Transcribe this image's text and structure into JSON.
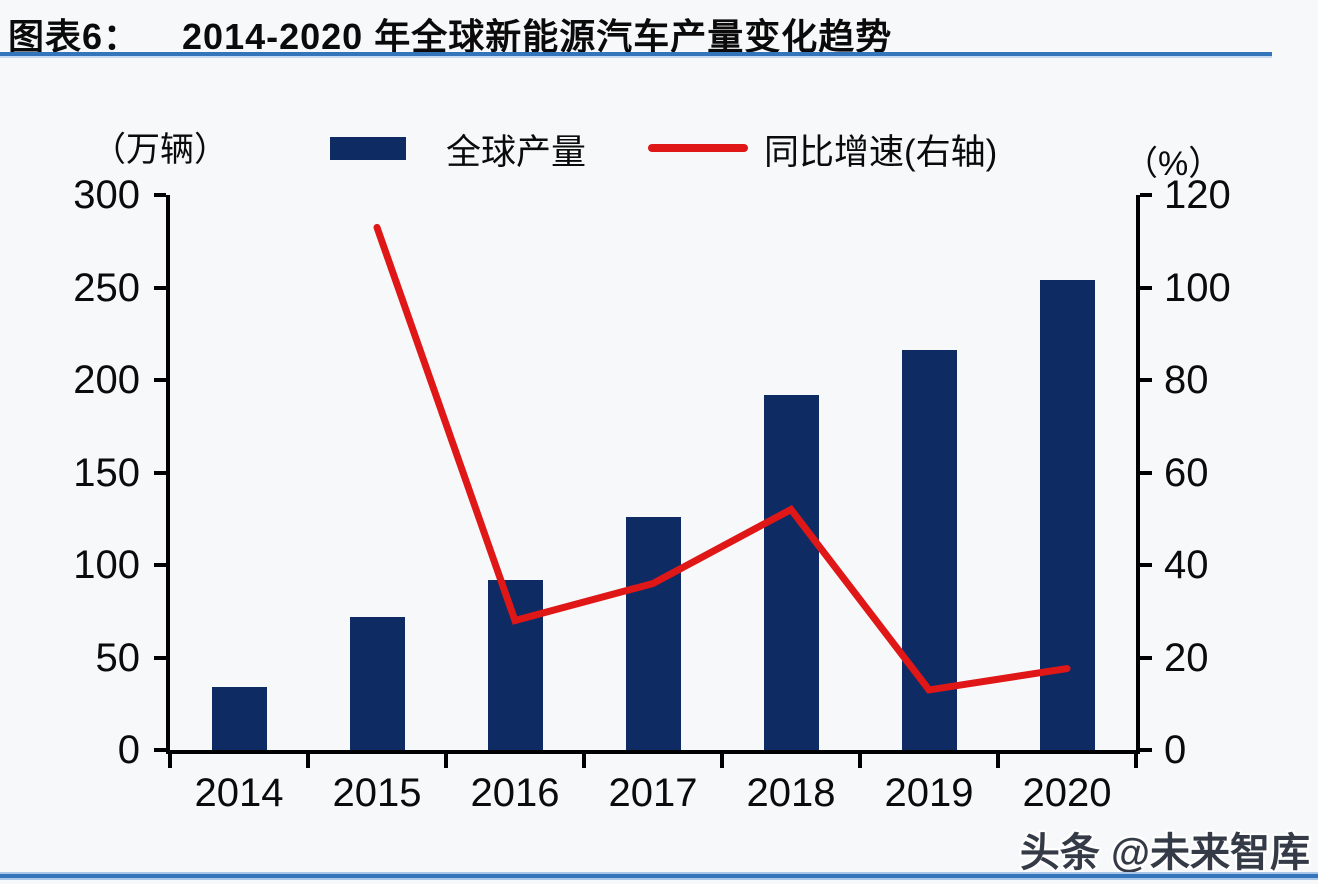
{
  "page": {
    "background": "#f7f8fa"
  },
  "header": {
    "title_label": "图表6：",
    "title_text": "2014-2020 年全球新能源汽车产量变化趋势"
  },
  "legend": {
    "left_axis_unit": "（万辆）",
    "right_axis_unit": "（%）",
    "items": [
      {
        "label": "全球产量",
        "swatch": "bar",
        "color": "#0e2b64"
      },
      {
        "label": "同比增速(右轴)",
        "swatch": "line",
        "color": "#e01717"
      }
    ]
  },
  "watermark": {
    "text": "头条 @未来智库"
  },
  "colors": {
    "bar": "#0e2b64",
    "line": "#e01717",
    "rule_blue": "#3474bb",
    "axis_black": "#000000"
  },
  "chart_data": {
    "type": "bar+line",
    "title": "2014-2020 年全球新能源汽车产量变化趋势",
    "categories": [
      "2014",
      "2015",
      "2016",
      "2017",
      "2018",
      "2019",
      "2020"
    ],
    "series": [
      {
        "name": "全球产量",
        "type": "bar",
        "axis": "left",
        "unit": "万辆",
        "color": "#0e2b64",
        "values": [
          34,
          72,
          92,
          126,
          192,
          216,
          254
        ]
      },
      {
        "name": "同比增速(右轴)",
        "type": "line",
        "axis": "right",
        "unit": "%",
        "color": "#e01717",
        "values": [
          null,
          113,
          28,
          36,
          52,
          13,
          17.6
        ]
      }
    ],
    "left_axis": {
      "label": "（万辆）",
      "min": 0,
      "max": 300,
      "ticks": [
        0,
        50,
        100,
        150,
        200,
        250,
        300
      ]
    },
    "right_axis": {
      "label": "（%）",
      "min": 0,
      "max": 120,
      "ticks": [
        0,
        20,
        40,
        60,
        80,
        100,
        120
      ]
    },
    "grid": false,
    "legend_position": "top"
  }
}
